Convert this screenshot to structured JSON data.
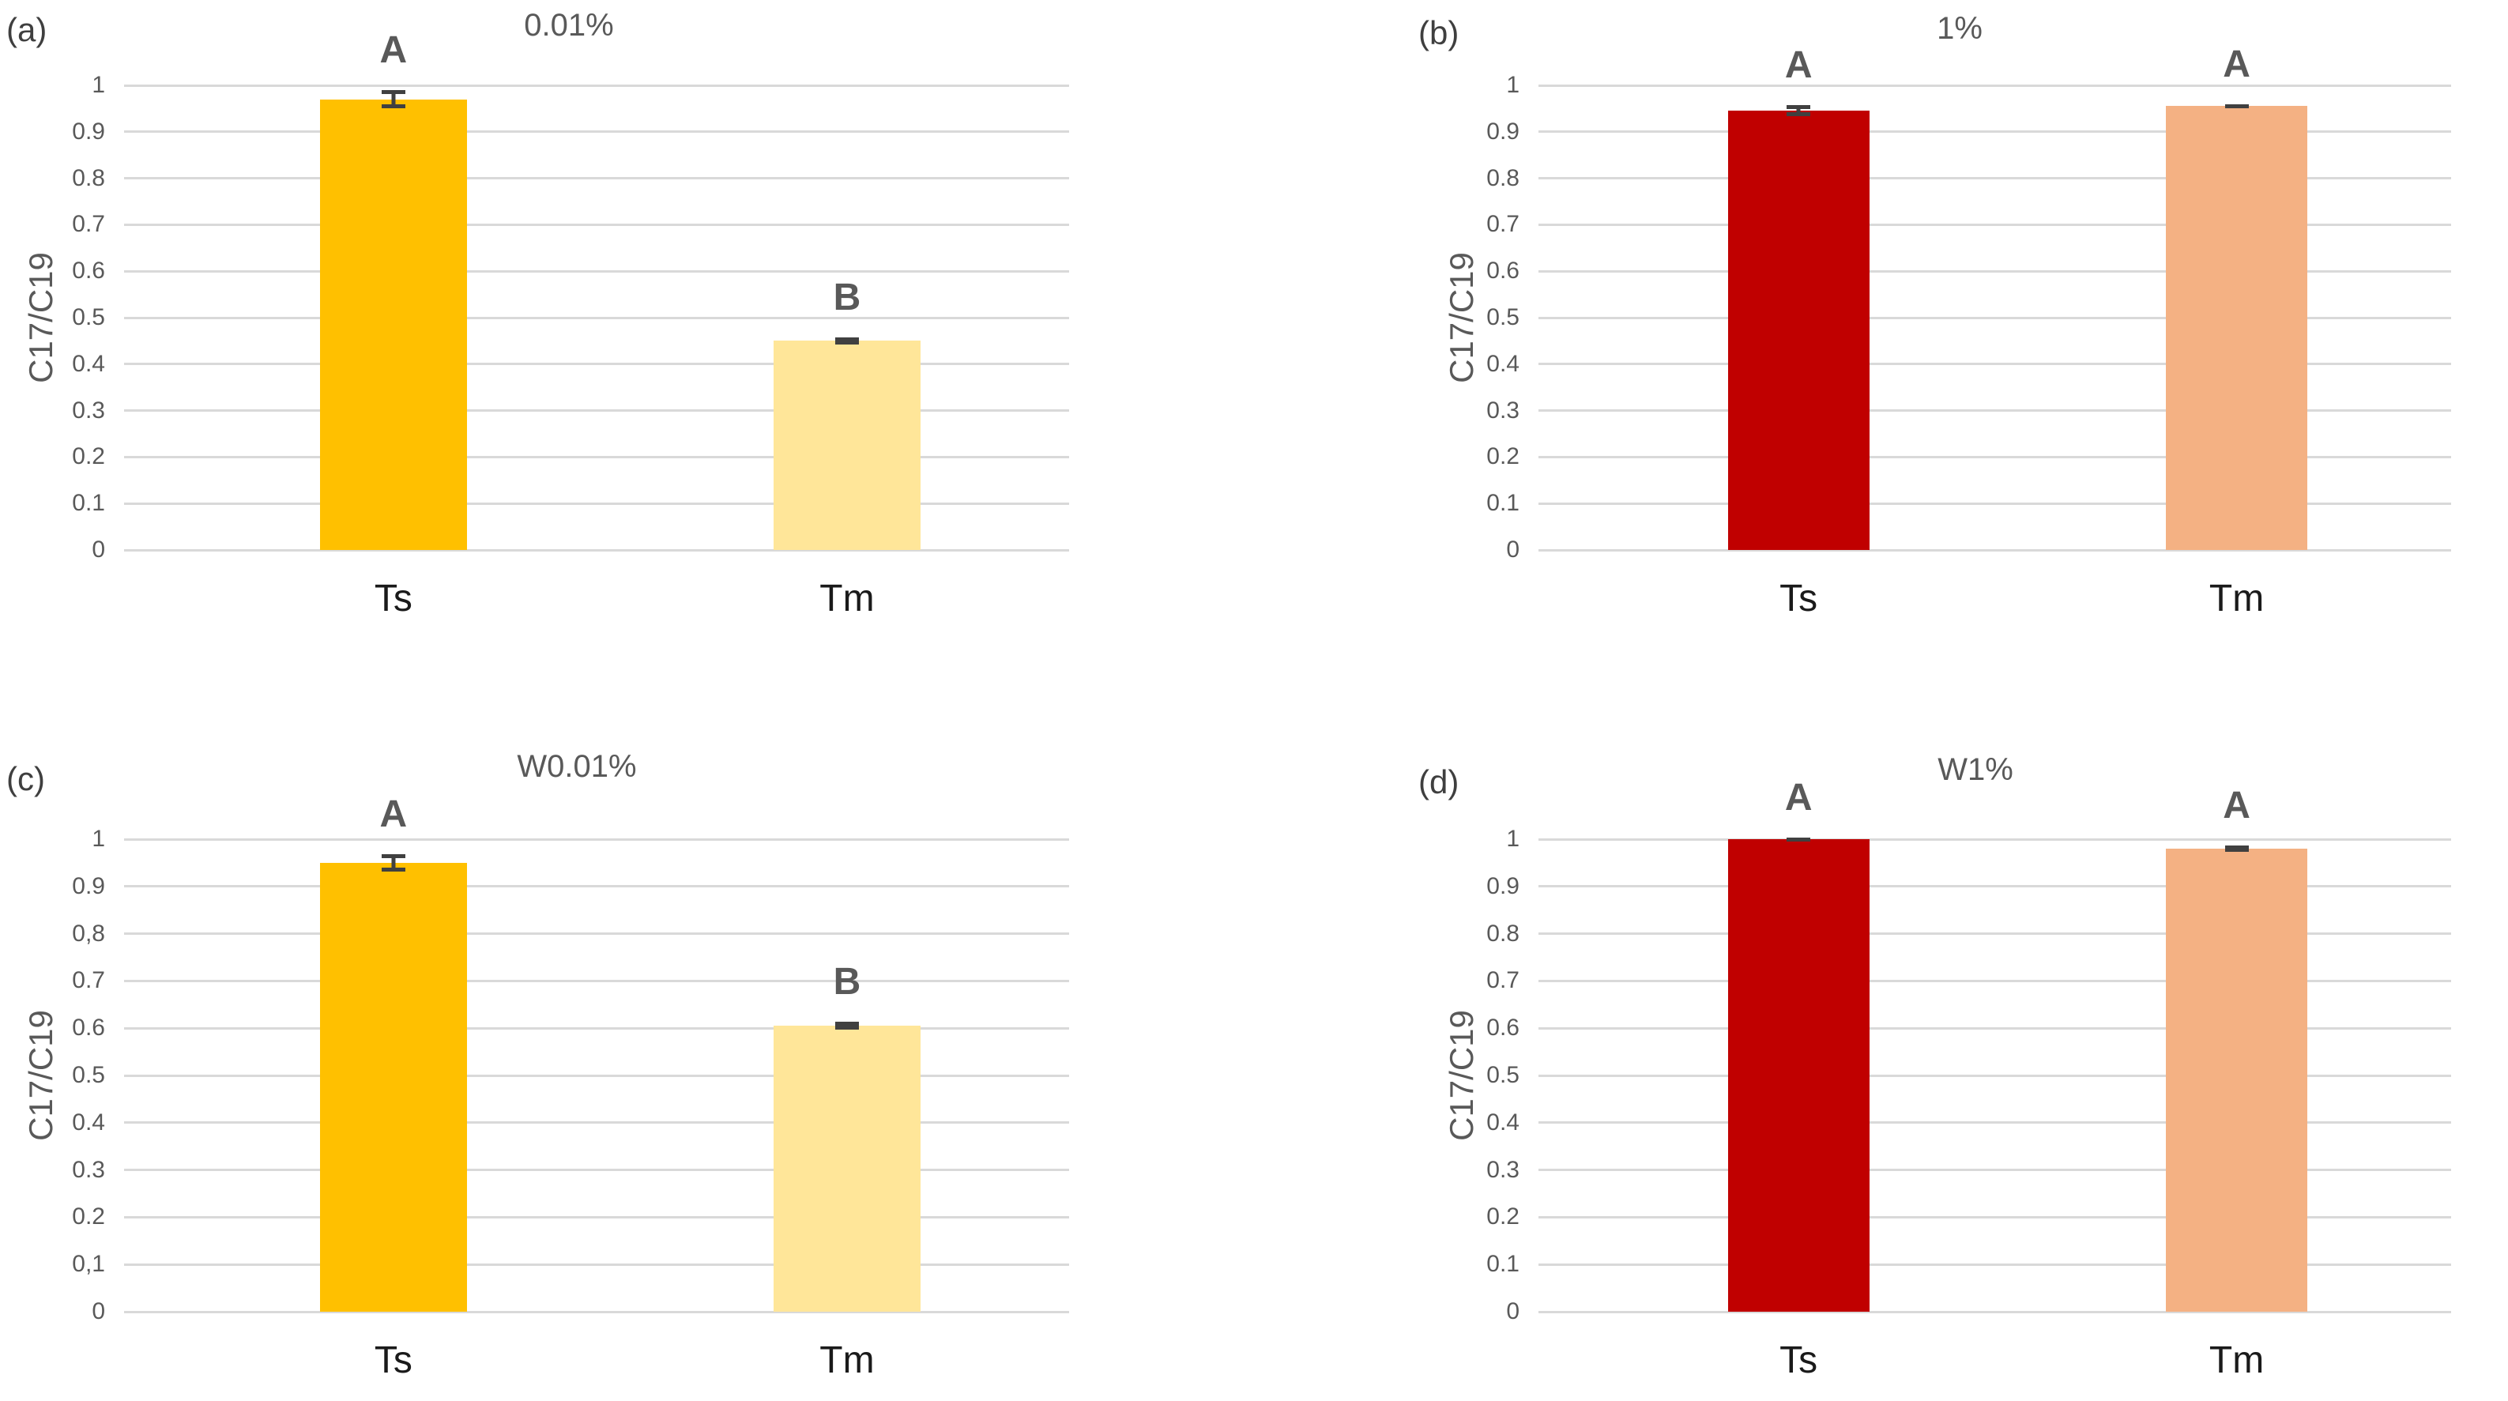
{
  "colors": {
    "grid": "#D9D9D9",
    "tick_text": "#595959",
    "title_text": "#595959",
    "panel_label_text": "#3f3f3f",
    "sig_letter_text": "#595959",
    "xlabel_text": "#1a1a1a",
    "error_bar": "#404040",
    "ts_orange": "#FFC000",
    "tm_light_yellow": "#FFE699",
    "ts_dark_red": "#C00000",
    "tm_salmon": "#F4B183"
  },
  "chart_data": [
    {
      "type": "bar",
      "panel_label": "(a)",
      "title": "0.01%",
      "ylabel": "C17/C19",
      "categories": [
        "Ts",
        "Tm"
      ],
      "values": [
        0.97,
        0.45
      ],
      "errors": [
        0.02,
        0.008
      ],
      "sig_letters": [
        "A",
        "B"
      ],
      "bar_colors": [
        "#FFC000",
        "#FFE699"
      ],
      "ylim": [
        0,
        1
      ],
      "ytick_labels": [
        "1",
        "0.9",
        "0.8",
        "0.7",
        "0.6",
        "0.5",
        "0.4",
        "0.3",
        "0.2",
        "0.1",
        "0"
      ],
      "grid": true,
      "legend": "none"
    },
    {
      "type": "bar",
      "panel_label": "(b)",
      "title": "1%",
      "ylabel": "C17/C19",
      "categories": [
        "Ts",
        "Tm"
      ],
      "values": [
        0.945,
        0.955
      ],
      "errors": [
        0.012,
        0.004
      ],
      "sig_letters": [
        "A",
        "A"
      ],
      "bar_colors": [
        "#C00000",
        "#F4B183"
      ],
      "ylim": [
        0,
        1
      ],
      "ytick_labels": [
        "1",
        "0.9",
        "0.8",
        "0.7",
        "0.6",
        "0.5",
        "0.4",
        "0.3",
        "0.2",
        "0.1",
        "0"
      ],
      "grid": true,
      "legend": "none"
    },
    {
      "type": "bar",
      "panel_label": "(c)",
      "title": "W0.01%",
      "ylabel": "C17/C19",
      "categories": [
        "Ts",
        "Tm"
      ],
      "values": [
        0.95,
        0.605
      ],
      "errors": [
        0.018,
        0.008
      ],
      "sig_letters": [
        "A",
        "B"
      ],
      "bar_colors": [
        "#FFC000",
        "#FFE699"
      ],
      "ylim": [
        0,
        1
      ],
      "ytick_labels": [
        "1",
        "0.9",
        "0,8",
        "0.7",
        "0.6",
        "0.5",
        "0.4",
        "0.3",
        "0.2",
        "0,1",
        "0"
      ],
      "grid": true,
      "legend": "none"
    },
    {
      "type": "bar",
      "panel_label": "(d)",
      "title": "W1%",
      "ylabel": "C17/C19",
      "categories": [
        "Ts",
        "Tm"
      ],
      "values": [
        1.0,
        0.98
      ],
      "errors": [
        0.004,
        0.006
      ],
      "sig_letters": [
        "A",
        "A"
      ],
      "bar_colors": [
        "#C00000",
        "#F4B183"
      ],
      "ylim": [
        0,
        1
      ],
      "ytick_labels": [
        "1",
        "0.9",
        "0.8",
        "0.7",
        "0.6",
        "0.5",
        "0.4",
        "0.3",
        "0.2",
        "0.1",
        "0"
      ],
      "grid": true,
      "legend": "none"
    }
  ]
}
